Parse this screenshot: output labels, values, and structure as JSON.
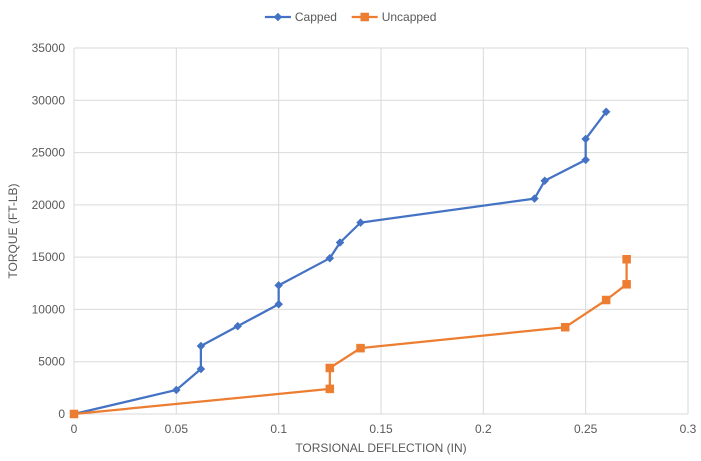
{
  "chart_data": {
    "type": "scatter",
    "title": "",
    "xlabel": "TORSIONAL DEFLECTION (IN)",
    "ylabel": "TORQUE (FT-LB)",
    "xlim": [
      0,
      0.3
    ],
    "ylim": [
      0,
      35000
    ],
    "xticks": [
      "0",
      "0.05",
      "0.1",
      "0.15",
      "0.2",
      "0.25",
      "0.3"
    ],
    "yticks": [
      "0",
      "5000",
      "10000",
      "15000",
      "20000",
      "25000",
      "30000",
      "35000"
    ],
    "grid": true,
    "legend_position": "top-center",
    "series": [
      {
        "name": "Capped",
        "color": "#4472C4",
        "marker": "diamond",
        "x": [
          0,
          0.05,
          0.062,
          0.062,
          0.08,
          0.1,
          0.1,
          0.125,
          0.13,
          0.14,
          0.225,
          0.23,
          0.25,
          0.25,
          0.26
        ],
        "y": [
          0,
          2300,
          4300,
          6500,
          8400,
          10500,
          12300,
          14900,
          16400,
          18300,
          20600,
          22300,
          24300,
          26300,
          28900
        ]
      },
      {
        "name": "Uncapped",
        "color": "#ED7D31",
        "marker": "square",
        "x": [
          0,
          0.125,
          0.125,
          0.14,
          0.24,
          0.26,
          0.27,
          0.27
        ],
        "y": [
          0,
          2400,
          4400,
          6300,
          8300,
          10900,
          12400,
          14800
        ]
      }
    ]
  }
}
